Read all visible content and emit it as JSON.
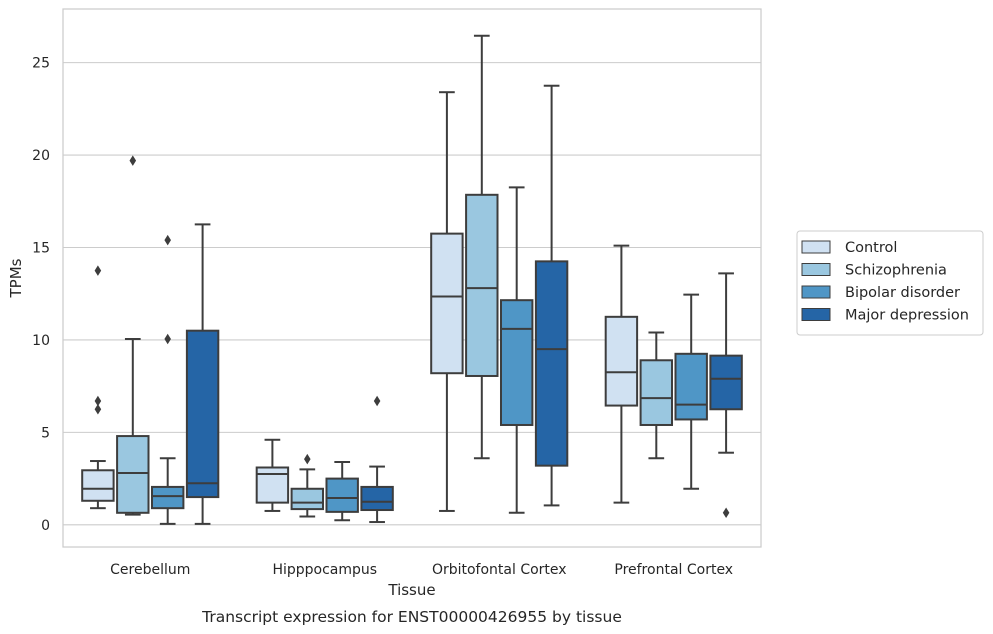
{
  "caption": "Transcript expression for ENST00000426955 by tissue",
  "chart_data": {
    "type": "box",
    "xlabel": "Tissue",
    "ylabel": "TPMs",
    "ylim": [
      -1.2,
      27.9
    ],
    "yticks": [
      0,
      5,
      10,
      15,
      20,
      25
    ],
    "grid": true,
    "legend_position": "right",
    "categories": [
      "Cerebellum",
      "Hipppocampus",
      "Orbitofontal Cortex",
      "Prefrontal Cortex"
    ],
    "series": [
      {
        "name": "Control",
        "color": "#d0e1f2",
        "boxes": [
          {
            "whislo": 0.9,
            "q1": 1.3,
            "med": 1.95,
            "q3": 2.95,
            "whishi": 3.45,
            "fliers": [
              13.75,
              6.7,
              6.25
            ]
          },
          {
            "whislo": 0.75,
            "q1": 1.2,
            "med": 2.75,
            "q3": 3.1,
            "whishi": 4.6,
            "fliers": []
          },
          {
            "whislo": 0.75,
            "q1": 8.2,
            "med": 12.35,
            "q3": 15.75,
            "whishi": 23.4,
            "fliers": []
          },
          {
            "whislo": 1.2,
            "q1": 6.45,
            "med": 8.25,
            "q3": 11.25,
            "whishi": 15.1,
            "fliers": []
          }
        ]
      },
      {
        "name": "Schizophrenia",
        "color": "#9ac7e0",
        "boxes": [
          {
            "whislo": 0.55,
            "q1": 0.65,
            "med": 2.8,
            "q3": 4.8,
            "whishi": 10.05,
            "fliers": [
              19.7
            ]
          },
          {
            "whislo": 0.45,
            "q1": 0.85,
            "med": 1.2,
            "q3": 1.95,
            "whishi": 3.0,
            "fliers": [
              3.55
            ]
          },
          {
            "whislo": 3.6,
            "q1": 8.05,
            "med": 12.8,
            "q3": 17.85,
            "whishi": 26.45,
            "fliers": []
          },
          {
            "whislo": 3.6,
            "q1": 5.4,
            "med": 6.85,
            "q3": 8.9,
            "whishi": 10.4,
            "fliers": []
          }
        ]
      },
      {
        "name": "Bipolar disorder",
        "color": "#4f96c6",
        "boxes": [
          {
            "whislo": 0.05,
            "q1": 0.9,
            "med": 1.55,
            "q3": 2.05,
            "whishi": 3.6,
            "fliers": [
              15.4,
              10.05
            ]
          },
          {
            "whislo": 0.25,
            "q1": 0.7,
            "med": 1.45,
            "q3": 2.5,
            "whishi": 3.4,
            "fliers": []
          },
          {
            "whislo": 0.65,
            "q1": 5.4,
            "med": 10.6,
            "q3": 12.15,
            "whishi": 18.25,
            "fliers": []
          },
          {
            "whislo": 1.95,
            "q1": 5.7,
            "med": 6.5,
            "q3": 9.25,
            "whishi": 12.45,
            "fliers": []
          }
        ]
      },
      {
        "name": "Major depression",
        "color": "#2565a6",
        "boxes": [
          {
            "whislo": 0.05,
            "q1": 1.5,
            "med": 2.25,
            "q3": 10.5,
            "whishi": 16.25,
            "fliers": []
          },
          {
            "whislo": 0.15,
            "q1": 0.8,
            "med": 1.25,
            "q3": 2.05,
            "whishi": 3.15,
            "fliers": [
              6.7
            ]
          },
          {
            "whislo": 1.05,
            "q1": 3.2,
            "med": 9.5,
            "q3": 14.25,
            "whishi": 23.75,
            "fliers": []
          },
          {
            "whislo": 3.9,
            "q1": 6.25,
            "med": 7.9,
            "q3": 9.15,
            "whishi": 13.6,
            "fliers": [
              0.65
            ]
          }
        ]
      }
    ]
  }
}
